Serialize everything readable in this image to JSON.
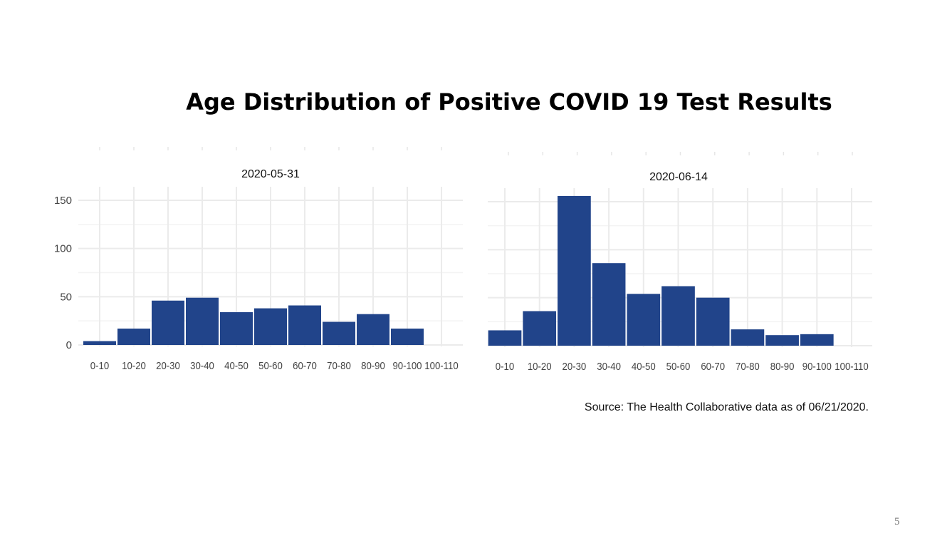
{
  "slide": {
    "title": "Age Distribution of Positive COVID 19 Test Results",
    "source": "Source: The Health Collaborative data as of 06/21/2020.",
    "page_number": "5"
  },
  "chart_data": [
    {
      "type": "bar",
      "title": "2020-05-31",
      "categories": [
        "0-10",
        "10-20",
        "20-30",
        "30-40",
        "40-50",
        "50-60",
        "60-70",
        "70-80",
        "80-90",
        "90-100",
        "100-110"
      ],
      "values": [
        4,
        17,
        46,
        49,
        34,
        38,
        41,
        24,
        32,
        17,
        0
      ],
      "ylim": [
        0,
        160
      ],
      "yticks": [
        0,
        50,
        100,
        150
      ],
      "grid": true,
      "bar_color": "#21448a"
    },
    {
      "type": "bar",
      "title": "2020-06-14",
      "categories": [
        "0-10",
        "10-20",
        "20-30",
        "30-40",
        "40-50",
        "50-60",
        "60-70",
        "70-80",
        "80-90",
        "90-100",
        "100-110"
      ],
      "values": [
        16,
        36,
        156,
        86,
        54,
        62,
        50,
        17,
        11,
        12,
        0
      ],
      "ylim": [
        0,
        160
      ],
      "yticks": [],
      "grid": true,
      "bar_color": "#21448a"
    }
  ]
}
